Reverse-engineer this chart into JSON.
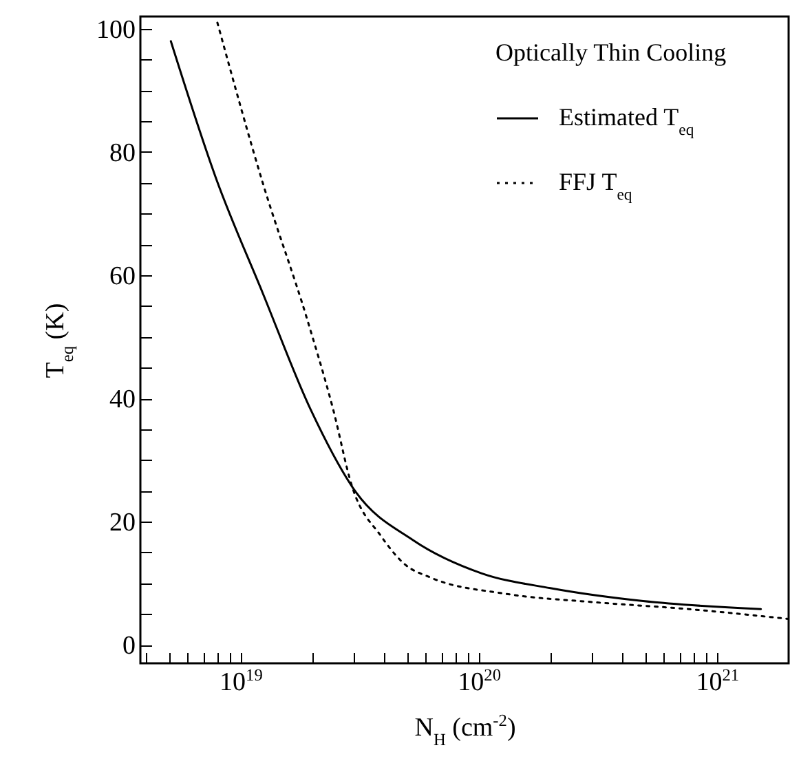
{
  "chart_data": {
    "type": "line",
    "legend_title": "Optically Thin Cooling",
    "xlabel": "N$_{H}$  (cm$^{-2}$)",
    "ylabel": "T$_{eq}$  (K)",
    "log": "x",
    "grid": false,
    "legend": "top right",
    "xlim": [
      3.8e+18,
      2e+21
    ],
    "ylim": [
      -3,
      102
    ],
    "xticks": [
      {
        "value": 4e+18,
        "label": null
      },
      {
        "value": 5e+18,
        "label": null
      },
      {
        "value": 6e+18,
        "label": null
      },
      {
        "value": 7e+18,
        "label": null
      },
      {
        "value": 8e+18,
        "label": null
      },
      {
        "value": 9e+18,
        "label": null
      },
      {
        "value": 1e+19,
        "label": "10$^{19}$"
      },
      {
        "value": 2e+19,
        "label": null
      },
      {
        "value": 3e+19,
        "label": null
      },
      {
        "value": 4e+19,
        "label": null
      },
      {
        "value": 5e+19,
        "label": null
      },
      {
        "value": 6e+19,
        "label": null
      },
      {
        "value": 7e+19,
        "label": null
      },
      {
        "value": 8e+19,
        "label": null
      },
      {
        "value": 9e+19,
        "label": null
      },
      {
        "value": 1e+20,
        "label": "10$^{20}$"
      },
      {
        "value": 2e+20,
        "label": null
      },
      {
        "value": 3e+20,
        "label": null
      },
      {
        "value": 4e+20,
        "label": null
      },
      {
        "value": 5e+20,
        "label": null
      },
      {
        "value": 6e+20,
        "label": null
      },
      {
        "value": 7e+20,
        "label": null
      },
      {
        "value": 8e+20,
        "label": null
      },
      {
        "value": 9e+20,
        "label": null
      },
      {
        "value": 1e+21,
        "label": "10$^{21}$"
      }
    ],
    "yticks": [
      0,
      {
        "value": 5,
        "label": null
      },
      {
        "value": 10,
        "label": null
      },
      {
        "value": 15,
        "label": null
      },
      20,
      {
        "value": 25,
        "label": null
      },
      {
        "value": 30,
        "label": null
      },
      {
        "value": 35,
        "label": null
      },
      40,
      {
        "value": 45,
        "label": null
      },
      {
        "value": 50,
        "label": null
      },
      {
        "value": 55,
        "label": null
      },
      60,
      {
        "value": 65,
        "label": null
      },
      {
        "value": 70,
        "label": null
      },
      {
        "value": 75,
        "label": null
      },
      80,
      {
        "value": 85,
        "label": null
      },
      {
        "value": 90,
        "label": null
      },
      {
        "value": 95,
        "label": null
      },
      100
    ],
    "series": [
      {
        "name": "Estimated T$_{eq}$",
        "color": "#000000",
        "line_style": "solid",
        "x": [
          5.1e+18,
          7.9e+18,
          1.24e+19,
          1.97e+19,
          3.05e+19,
          5.3e+19,
          1.03e+20,
          2e+20,
          4.9e+20,
          1.53e+21
        ],
        "values": [
          98,
          75.7,
          57.1,
          38.2,
          24.8,
          17,
          11.6,
          9.2,
          7.1,
          5.8
        ]
      },
      {
        "name": "FFJ T$_{eq}$",
        "color": "#000000",
        "line_style": "dotted",
        "x": [
          8e+18,
          1.24e+19,
          1.91e+19,
          2.45e+19,
          2.93e+19,
          3.9e+19,
          4.85e+19,
          6.3e+19,
          1.29e+20,
          3.1e+20,
          7.6e+20,
          2e+21
        ],
        "values": [
          101,
          75,
          52.7,
          38.2,
          25.9,
          17.6,
          13.2,
          10.9,
          8.3,
          6.9,
          5.8,
          4.2
        ]
      }
    ]
  }
}
